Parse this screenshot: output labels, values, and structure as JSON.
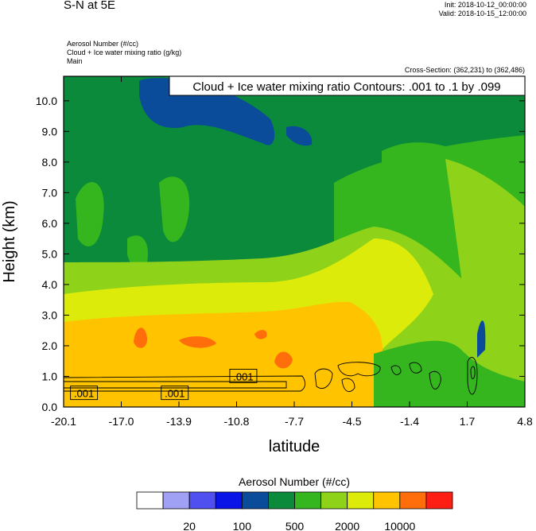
{
  "header": {
    "title": "S-N at 5E",
    "init": "Init: 2018-10-12_00:00:00",
    "valid": "Valid: 2018-10-15_12:00:00",
    "subtitle_lines": [
      "Aerosol Number   (#/cc)",
      "Cloud + Ice water mixing ratio   (g/kg)",
      "Main"
    ],
    "cross_section": "Cross-Section: (362,231) to (362,486)"
  },
  "chart_data": {
    "type": "heatmap",
    "title": "S-N at 5E",
    "annotation": "Cloud + Ice water mixing ratio Contours: .001 to .1 by .099",
    "xlabel": "latitude",
    "ylabel": "Height (km)",
    "x_ticks": [
      "-20.1",
      "-17.0",
      "-13.9",
      "-10.8",
      "-7.7",
      "-4.5",
      "-1.4",
      "1.7",
      "4.8"
    ],
    "y_ticks": [
      "0.0",
      "1.0",
      "2.0",
      "3.0",
      "4.0",
      "5.0",
      "6.0",
      "7.0",
      "8.0",
      "9.0",
      "10.0"
    ],
    "xlim": [
      -20.1,
      4.8
    ],
    "ylim": [
      0,
      10.8
    ],
    "contour_labels": [
      {
        "text": ".001",
        "x": -19.0,
        "y": 0.45
      },
      {
        "text": ".001",
        "x": -14.1,
        "y": 0.45
      },
      {
        "text": ".001",
        "x": -10.4,
        "y": 1.0
      }
    ],
    "colorbar": {
      "title": "Aerosol Number  (#/cc)",
      "colors": [
        "#ffffff",
        "#a0a0f5",
        "#5050f0",
        "#0a14e6",
        "#0a4b9a",
        "#0b8a3c",
        "#35b61e",
        "#8fd21a",
        "#dceb0a",
        "#ffc300",
        "#ff6e0a",
        "#ff1e14"
      ],
      "tick_labels": [
        "20",
        "100",
        "500",
        "2000",
        "10000"
      ]
    }
  }
}
